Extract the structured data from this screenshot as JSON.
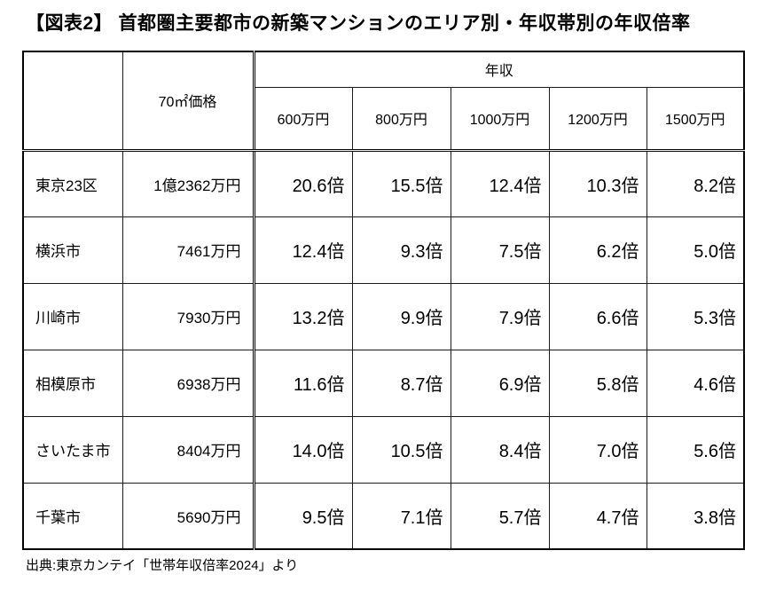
{
  "title": "【図表2】 首都圏主要都市の新築マンションのエリア別・年収帯別の年収倍率",
  "source": "出典:東京カンテイ「世帯年収倍率2024」より",
  "colors": {
    "red": "#cc2828",
    "purple": "#71489a",
    "blue": "#bdd7ee",
    "green": "#c6e0b4",
    "border": "#000000"
  },
  "chart_data": {
    "type": "table",
    "title": "首都圏主要都市の新築マンションのエリア別・年収帯別の年収倍率",
    "unit": "倍",
    "corner_label": "",
    "price_header": "70㎡価格",
    "income_header": "年収",
    "income_levels": [
      "600万円",
      "800万円",
      "1000万円",
      "1200万円",
      "1500万円"
    ],
    "style_legend": {
      "red": "red hatched fill (highest multiples)",
      "purple": "purple hatched fill",
      "blue": "light blue fill",
      "green": "light green fill (lowest multiples)"
    },
    "rows": [
      {
        "area": "東京23区",
        "price": "1億2362万円",
        "values": [
          20.6,
          15.5,
          12.4,
          10.3,
          8.2
        ],
        "display": [
          "20.6倍",
          "15.5倍",
          "12.4倍",
          "10.3倍",
          "8.2倍"
        ],
        "styles": [
          "red",
          "red",
          "red",
          "red",
          "purple"
        ]
      },
      {
        "area": "横浜市",
        "price": "7461万円",
        "values": [
          12.4,
          9.3,
          7.5,
          6.2,
          5.0
        ],
        "display": [
          "12.4倍",
          "9.3倍",
          "7.5倍",
          "6.2倍",
          "5.0倍"
        ],
        "styles": [
          "red",
          "purple",
          "blue",
          "blue",
          "green"
        ]
      },
      {
        "area": "川崎市",
        "price": "7930万円",
        "values": [
          13.2,
          9.9,
          7.9,
          6.6,
          5.3
        ],
        "display": [
          "13.2倍",
          "9.9倍",
          "7.9倍",
          "6.6倍",
          "5.3倍"
        ],
        "styles": [
          "red",
          "purple",
          "blue",
          "blue",
          "green"
        ]
      },
      {
        "area": "相模原市",
        "price": "6938万円",
        "values": [
          11.6,
          8.7,
          6.9,
          5.8,
          4.6
        ],
        "display": [
          "11.6倍",
          "8.7倍",
          "6.9倍",
          "5.8倍",
          "4.6倍"
        ],
        "styles": [
          "red",
          "purple",
          "blue",
          "green",
          "green"
        ]
      },
      {
        "area": "さいたま市",
        "price": "8404万円",
        "values": [
          14.0,
          10.5,
          8.4,
          7.0,
          5.6
        ],
        "display": [
          "14.0倍",
          "10.5倍",
          "8.4倍",
          "7.0倍",
          "5.6倍"
        ],
        "styles": [
          "red",
          "red",
          "purple",
          "blue",
          "green"
        ]
      },
      {
        "area": "千葉市",
        "price": "5690万円",
        "values": [
          9.5,
          7.1,
          5.7,
          4.7,
          3.8
        ],
        "display": [
          "9.5倍",
          "7.1倍",
          "5.7倍",
          "4.7倍",
          "3.8倍"
        ],
        "styles": [
          "purple",
          "blue",
          "green",
          "green",
          "green"
        ]
      }
    ]
  }
}
